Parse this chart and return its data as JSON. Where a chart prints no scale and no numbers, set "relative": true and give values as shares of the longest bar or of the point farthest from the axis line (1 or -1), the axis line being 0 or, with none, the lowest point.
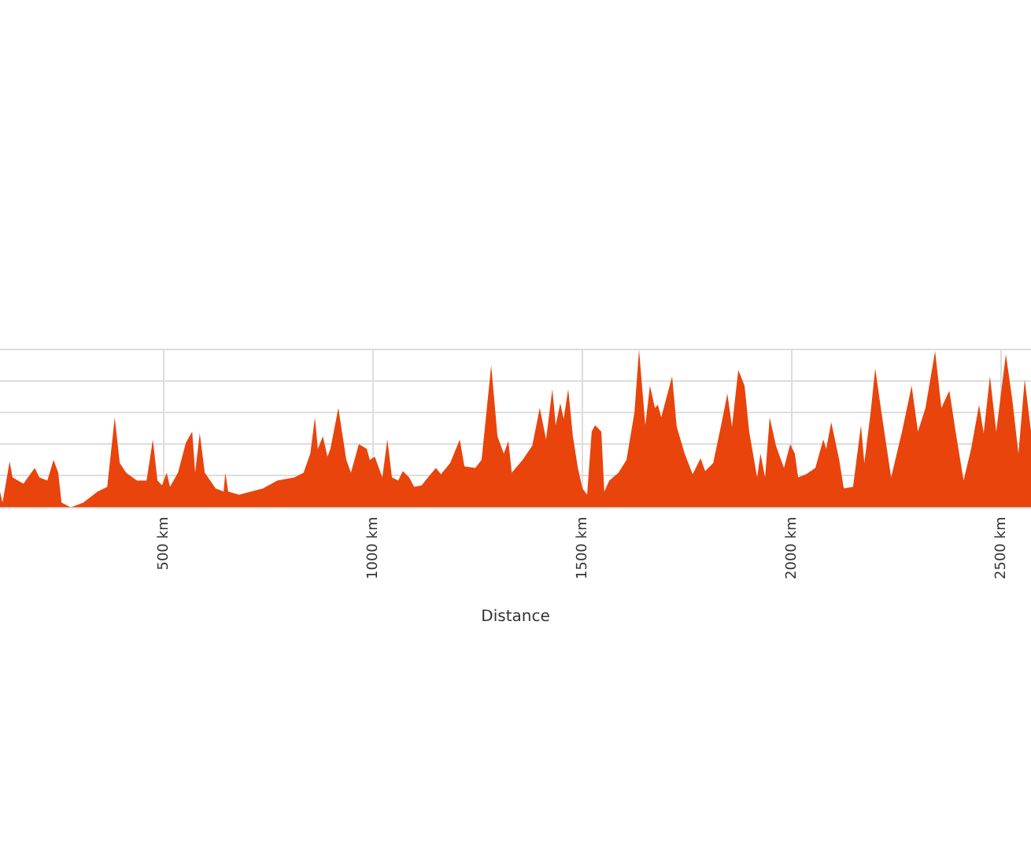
{
  "chart_data": {
    "type": "area",
    "xlabel": "Distance",
    "relative": true,
    "grid": true,
    "legend": false,
    "marker": "none",
    "xlim": [
      109,
      2571
    ],
    "xticks": [
      {
        "value": 500,
        "label": "500 km"
      },
      {
        "value": 1000,
        "label": "1000 km"
      },
      {
        "value": 1500,
        "label": "1500 km"
      },
      {
        "value": 2000,
        "label": "2000 km"
      },
      {
        "value": 2500,
        "label": "2500 km"
      }
    ],
    "x": [
      109,
      115,
      132,
      139,
      165,
      192,
      203,
      222,
      237,
      248,
      256,
      278,
      308,
      342,
      365,
      383,
      395,
      410,
      436,
      459,
      474,
      485,
      496,
      507,
      515,
      534,
      553,
      568,
      575,
      586,
      598,
      624,
      643,
      647,
      654,
      680,
      737,
      771,
      812,
      834,
      850,
      861,
      868,
      880,
      891,
      898,
      917,
      936,
      947,
      966,
      985,
      992,
      1004,
      1022,
      1034,
      1045,
      1060,
      1071,
      1086,
      1098,
      1116,
      1131,
      1150,
      1162,
      1184,
      1207,
      1218,
      1244,
      1259,
      1282,
      1297,
      1312,
      1323,
      1331,
      1357,
      1380,
      1398,
      1413,
      1428,
      1436,
      1447,
      1455,
      1466,
      1477,
      1489,
      1500,
      1511,
      1522,
      1530,
      1545,
      1552,
      1564,
      1586,
      1605,
      1624,
      1635,
      1650,
      1661,
      1673,
      1680,
      1688,
      1714,
      1725,
      1744,
      1763,
      1782,
      1793,
      1812,
      1831,
      1846,
      1857,
      1872,
      1887,
      1898,
      1917,
      1925,
      1936,
      1947,
      1962,
      1981,
      1996,
      2007,
      2015,
      2034,
      2056,
      2075,
      2082,
      2094,
      2113,
      2124,
      2146,
      2165,
      2173,
      2188,
      2199,
      2214,
      2237,
      2263,
      2286,
      2301,
      2319,
      2342,
      2357,
      2376,
      2391,
      2410,
      2428,
      2447,
      2458,
      2473,
      2488,
      2511,
      2526,
      2541,
      2556,
      2571
    ],
    "series": [
      {
        "color": "#e8440c",
        "values": [
          0.1,
          0.03,
          0.29,
          0.19,
          0.15,
          0.25,
          0.19,
          0.17,
          0.3,
          0.22,
          0.03,
          0.0,
          0.03,
          0.1,
          0.13,
          0.57,
          0.28,
          0.22,
          0.17,
          0.17,
          0.43,
          0.17,
          0.14,
          0.22,
          0.13,
          0.22,
          0.41,
          0.48,
          0.22,
          0.47,
          0.22,
          0.12,
          0.1,
          0.22,
          0.1,
          0.08,
          0.12,
          0.17,
          0.19,
          0.22,
          0.34,
          0.57,
          0.37,
          0.45,
          0.32,
          0.37,
          0.63,
          0.3,
          0.22,
          0.4,
          0.37,
          0.3,
          0.32,
          0.19,
          0.43,
          0.19,
          0.17,
          0.23,
          0.19,
          0.13,
          0.14,
          0.19,
          0.25,
          0.21,
          0.28,
          0.43,
          0.26,
          0.25,
          0.3,
          0.9,
          0.45,
          0.34,
          0.42,
          0.22,
          0.3,
          0.39,
          0.63,
          0.43,
          0.75,
          0.52,
          0.66,
          0.56,
          0.75,
          0.45,
          0.25,
          0.12,
          0.08,
          0.48,
          0.52,
          0.48,
          0.1,
          0.17,
          0.22,
          0.3,
          0.6,
          1.0,
          0.52,
          0.77,
          0.63,
          0.65,
          0.57,
          0.83,
          0.51,
          0.34,
          0.21,
          0.31,
          0.23,
          0.28,
          0.52,
          0.72,
          0.51,
          0.87,
          0.77,
          0.48,
          0.19,
          0.34,
          0.19,
          0.57,
          0.39,
          0.25,
          0.4,
          0.34,
          0.19,
          0.21,
          0.25,
          0.43,
          0.37,
          0.54,
          0.3,
          0.12,
          0.13,
          0.52,
          0.28,
          0.6,
          0.88,
          0.6,
          0.19,
          0.48,
          0.77,
          0.48,
          0.63,
          0.99,
          0.63,
          0.74,
          0.48,
          0.17,
          0.37,
          0.65,
          0.47,
          0.83,
          0.48,
          0.97,
          0.69,
          0.34,
          0.81,
          0.48
        ]
      }
    ]
  }
}
